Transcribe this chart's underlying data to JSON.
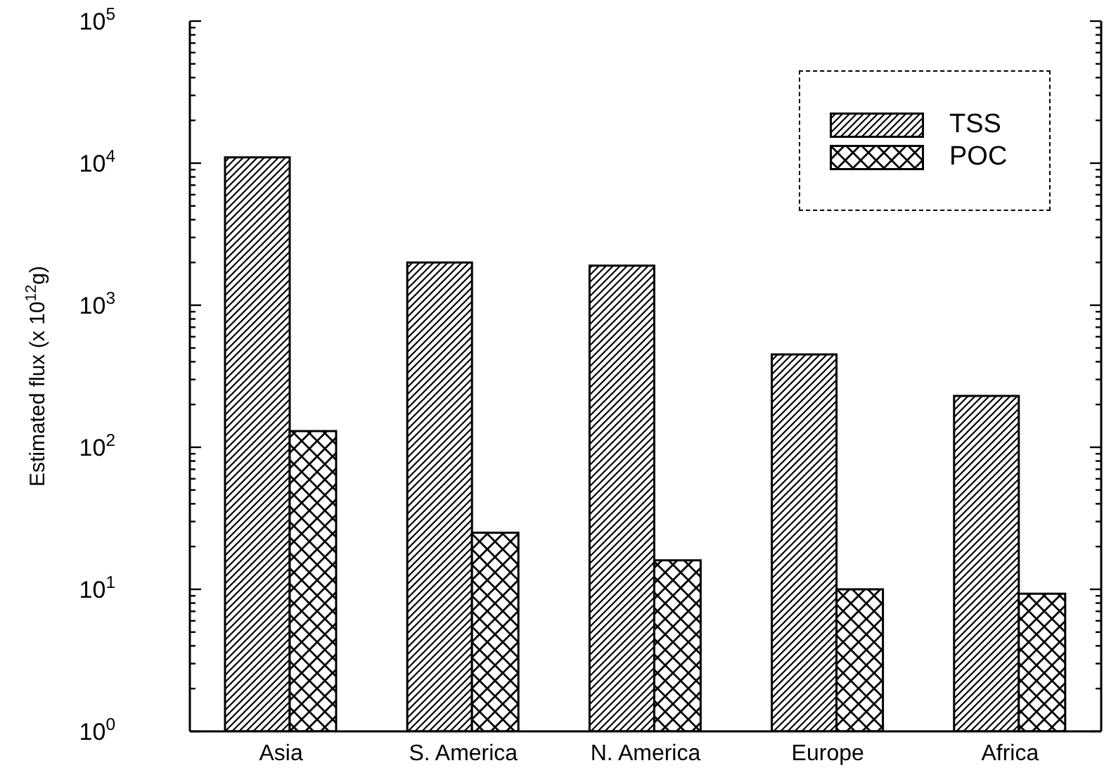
{
  "chart_data": {
    "type": "bar",
    "log": true,
    "legend": "top right",
    "ylabel": "Estimated flux (x 10$^{12}$g)",
    "categories": [
      "Asia",
      "S. America",
      "N. America",
      "Europe",
      "Africa"
    ],
    "series": [
      {
        "name": "TSS",
        "color": "#000000",
        "values": [
          11000,
          2000,
          1900,
          450,
          230
        ]
      },
      {
        "name": "POC",
        "color": "#000000",
        "values": [
          130,
          25,
          16,
          10,
          9.3
        ]
      }
    ],
    "ylim": [
      1,
      100000
    ],
    "yticks": [
      {
        "value": 1,
        "label": "10$^{0}$"
      },
      {
        "value": 2,
        "label": null
      },
      {
        "value": 3,
        "label": null
      },
      {
        "value": 4,
        "label": null
      },
      {
        "value": 5,
        "label": null
      },
      {
        "value": 6,
        "label": null
      },
      {
        "value": 7,
        "label": null
      },
      {
        "value": 8,
        "label": null
      },
      {
        "value": 9,
        "label": null
      },
      {
        "value": 10,
        "label": "10$^{1}$"
      },
      {
        "value": 20,
        "label": null
      },
      {
        "value": 30,
        "label": null
      },
      {
        "value": 40,
        "label": null
      },
      {
        "value": 50,
        "label": null
      },
      {
        "value": 60,
        "label": null
      },
      {
        "value": 70,
        "label": null
      },
      {
        "value": 80,
        "label": null
      },
      {
        "value": 90,
        "label": null
      },
      {
        "value": 100,
        "label": "10$^{2}$"
      },
      {
        "value": 200,
        "label": null
      },
      {
        "value": 300,
        "label": null
      },
      {
        "value": 400,
        "label": null
      },
      {
        "value": 500,
        "label": null
      },
      {
        "value": 600,
        "label": null
      },
      {
        "value": 700,
        "label": null
      },
      {
        "value": 800,
        "label": null
      },
      {
        "value": 900,
        "label": null
      },
      {
        "value": 1000,
        "label": "10$^{3}$"
      },
      {
        "value": 2000,
        "label": null
      },
      {
        "value": 3000,
        "label": null
      },
      {
        "value": 4000,
        "label": null
      },
      {
        "value": 5000,
        "label": null
      },
      {
        "value": 6000,
        "label": null
      },
      {
        "value": 7000,
        "label": null
      },
      {
        "value": 8000,
        "label": null
      },
      {
        "value": 9000,
        "label": null
      },
      {
        "value": 10000,
        "label": "10$^{4}$"
      },
      {
        "value": 20000,
        "label": null
      },
      {
        "value": 30000,
        "label": null
      },
      {
        "value": 40000,
        "label": null
      },
      {
        "value": 50000,
        "label": null
      },
      {
        "value": 60000,
        "label": null
      },
      {
        "value": 70000,
        "label": null
      },
      {
        "value": 80000,
        "label": null
      },
      {
        "value": 90000,
        "label": null
      },
      {
        "value": 100000,
        "label": "10$^{5}$"
      }
    ]
  }
}
